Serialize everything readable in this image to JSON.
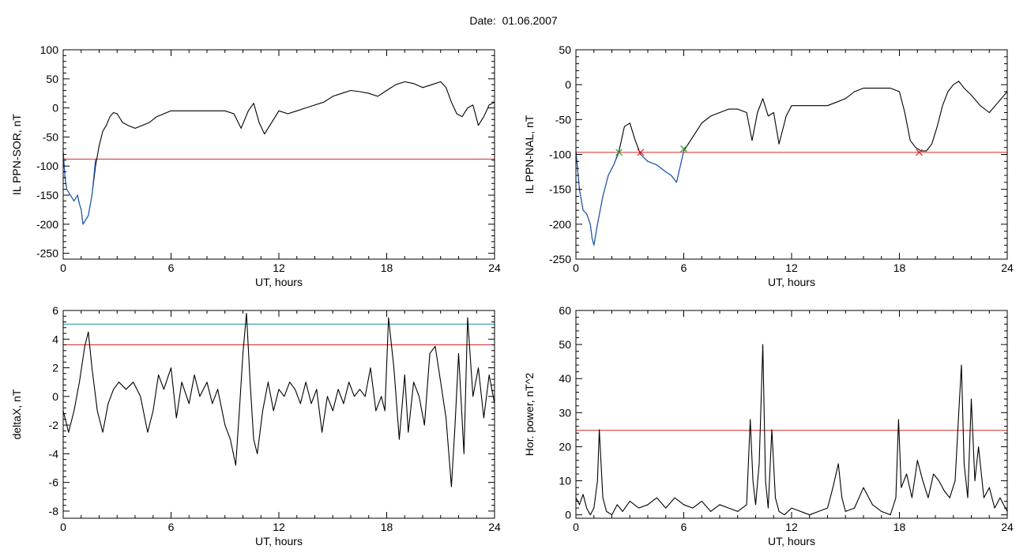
{
  "page": {
    "title": "Date:  01.06.2007"
  },
  "chart_data": [
    {
      "type": "line",
      "ylabel": "IL PPN-SOR, nT",
      "xlabel": "UT, hours",
      "xlim": [
        0,
        24
      ],
      "ylim": [
        -260,
        100
      ],
      "xticks": [
        0,
        6,
        12,
        18,
        24
      ],
      "yticks": [
        100,
        50,
        0,
        -50,
        -100,
        -150,
        -200,
        -250
      ],
      "threshold": -88,
      "series": [
        {
          "color": "#000000",
          "x": [
            0,
            0.1,
            0.2,
            0.4,
            0.6,
            0.8,
            0.9,
            1.0,
            1.1,
            1.2,
            1.4,
            1.6,
            1.8,
            2.0,
            2.2,
            2.4,
            2.6,
            2.8,
            3.0,
            3.3,
            3.6,
            4.0,
            4.4,
            4.8,
            5.2,
            5.6,
            6.0,
            6.5,
            7.0,
            7.5,
            8.0,
            8.5,
            9.0,
            9.5,
            9.9,
            10.3,
            10.6,
            10.9,
            11.2,
            11.5,
            12.0,
            12.5,
            13.0,
            13.5,
            14.0,
            14.5,
            15.0,
            15.5,
            16.0,
            16.5,
            17.0,
            17.5,
            18.0,
            18.5,
            19.0,
            19.5,
            20.0,
            20.5,
            21.0,
            21.3,
            21.6,
            21.9,
            22.2,
            22.5,
            22.8,
            23.1,
            23.4,
            23.7,
            24.0
          ],
          "y": [
            -75,
            -120,
            -140,
            -150,
            -160,
            -150,
            -165,
            -175,
            -200,
            -195,
            -185,
            -150,
            -100,
            -65,
            -40,
            -30,
            -15,
            -8,
            -10,
            -25,
            -30,
            -35,
            -30,
            -25,
            -15,
            -10,
            -5,
            -5,
            -5,
            -5,
            -5,
            -5,
            -5,
            -10,
            -35,
            -5,
            8,
            -25,
            -45,
            -30,
            -5,
            -10,
            -5,
            0,
            5,
            10,
            20,
            25,
            30,
            28,
            25,
            20,
            30,
            40,
            45,
            42,
            35,
            40,
            45,
            35,
            10,
            -10,
            -15,
            0,
            5,
            -30,
            -15,
            5,
            10
          ]
        },
        {
          "color": "#1f5fbf",
          "x": [
            0,
            0.1,
            0.2,
            0.4,
            0.6,
            0.8,
            0.9,
            1.0,
            1.1,
            1.2,
            1.4,
            1.6,
            1.8
          ],
          "y": [
            -75,
            -120,
            -140,
            -150,
            -160,
            -150,
            -165,
            -175,
            -200,
            -195,
            -185,
            -150,
            -88
          ]
        }
      ]
    },
    {
      "type": "line",
      "ylabel": "IL PPN-NAL, nT",
      "xlabel": "UT, hours",
      "xlim": [
        0,
        24
      ],
      "ylim": [
        -250,
        50
      ],
      "xticks": [
        0,
        6,
        12,
        18,
        24
      ],
      "yticks": [
        50,
        0,
        -50,
        -100,
        -150,
        -200,
        -250
      ],
      "threshold": -97,
      "series": [
        {
          "color": "#000000",
          "x": [
            0,
            0.2,
            0.4,
            0.6,
            0.8,
            0.9,
            1.0,
            1.2,
            1.5,
            1.8,
            2.1,
            2.4,
            2.7,
            3.0,
            3.3,
            3.6,
            4.0,
            4.5,
            5.0,
            5.3,
            5.6,
            6.0,
            6.5,
            7.0,
            7.5,
            8.0,
            8.5,
            9.0,
            9.5,
            9.8,
            10.1,
            10.4,
            10.7,
            11.0,
            11.3,
            11.7,
            12.0,
            12.5,
            13.0,
            13.5,
            14.0,
            14.5,
            15.0,
            15.5,
            16.0,
            16.5,
            17.0,
            17.5,
            18.0,
            18.3,
            18.6,
            18.9,
            19.2,
            19.5,
            19.8,
            20.1,
            20.4,
            20.7,
            21.0,
            21.3,
            21.6,
            22.0,
            22.5,
            23.0,
            23.5,
            24.0
          ],
          "y": [
            -95,
            -150,
            -180,
            -185,
            -200,
            -220,
            -230,
            -200,
            -160,
            -130,
            -115,
            -95,
            -60,
            -55,
            -80,
            -100,
            -110,
            -115,
            -125,
            -130,
            -140,
            -95,
            -75,
            -55,
            -45,
            -40,
            -35,
            -35,
            -40,
            -80,
            -40,
            -20,
            -45,
            -40,
            -85,
            -45,
            -30,
            -30,
            -30,
            -30,
            -30,
            -25,
            -20,
            -10,
            -5,
            -5,
            -5,
            -5,
            -10,
            -40,
            -80,
            -90,
            -95,
            -95,
            -85,
            -60,
            -30,
            -10,
            0,
            5,
            -5,
            -15,
            -30,
            -40,
            -25,
            -10
          ]
        },
        {
          "color": "#1f5fbf",
          "x": [
            0,
            0.2,
            0.4,
            0.6,
            0.8,
            0.9,
            1.0,
            1.2,
            1.5,
            1.8,
            2.1,
            2.4
          ],
          "y": [
            -95,
            -150,
            -180,
            -185,
            -200,
            -220,
            -230,
            -200,
            -160,
            -130,
            -115,
            -97
          ]
        },
        {
          "color": "#1f5fbf",
          "x": [
            3.6,
            4.0,
            4.5,
            5.0,
            5.3,
            5.6,
            6.0
          ],
          "y": [
            -100,
            -110,
            -115,
            -125,
            -130,
            -140,
            -95
          ]
        }
      ],
      "markers": [
        {
          "x": 2.4,
          "y": -97,
          "color": "#2ca02c"
        },
        {
          "x": 3.6,
          "y": -97,
          "color": "#d62728"
        },
        {
          "x": 6.0,
          "y": -92,
          "color": "#2ca02c"
        },
        {
          "x": 19.1,
          "y": -97,
          "color": "#d62728"
        }
      ]
    },
    {
      "type": "line",
      "ylabel": "deltaX, nT",
      "xlabel": "UT, hours",
      "xlim": [
        0,
        24
      ],
      "ylim": [
        -8.5,
        6
      ],
      "xticks": [
        0,
        6,
        12,
        18,
        24
      ],
      "yticks": [
        6,
        4,
        2,
        0,
        -2,
        -4,
        -6,
        -8
      ],
      "threshold": 3.6,
      "threshold2": 5.05,
      "series": [
        {
          "color": "#000000",
          "x": [
            0,
            0.3,
            0.6,
            0.9,
            1.2,
            1.4,
            1.6,
            1.9,
            2.2,
            2.5,
            2.8,
            3.1,
            3.5,
            3.9,
            4.3,
            4.7,
            5.0,
            5.3,
            5.6,
            6.0,
            6.3,
            6.6,
            7.0,
            7.3,
            7.6,
            8.0,
            8.3,
            8.6,
            9.0,
            9.3,
            9.6,
            9.8,
            10.0,
            10.2,
            10.4,
            10.6,
            10.8,
            11.1,
            11.4,
            11.7,
            12.0,
            12.3,
            12.6,
            12.9,
            13.2,
            13.5,
            13.8,
            14.1,
            14.4,
            14.7,
            15.0,
            15.3,
            15.6,
            15.9,
            16.2,
            16.5,
            16.8,
            17.1,
            17.4,
            17.7,
            17.9,
            18.1,
            18.4,
            18.7,
            19.0,
            19.2,
            19.5,
            19.8,
            20.1,
            20.4,
            20.7,
            21.0,
            21.3,
            21.6,
            21.8,
            22.0,
            22.3,
            22.5,
            22.8,
            23.1,
            23.4,
            23.7,
            24.0
          ],
          "y": [
            -1,
            -2.5,
            -1,
            1,
            3.5,
            4.5,
            2,
            -1,
            -2.5,
            -0.5,
            0.5,
            1,
            0.5,
            1,
            0,
            -2.5,
            -1,
            1.5,
            0.5,
            2,
            -1.5,
            1,
            -0.5,
            1.5,
            0,
            1,
            -0.5,
            0.5,
            -2,
            -3,
            -4.8,
            -1,
            3,
            5.8,
            1,
            -3,
            -4,
            -1,
            1,
            -1,
            0.5,
            0,
            1,
            0.5,
            -0.5,
            1,
            -0.5,
            0.5,
            -2.5,
            0,
            -1,
            0.5,
            -0.5,
            1,
            0,
            0.5,
            0,
            2,
            -1,
            0,
            -1,
            5.5,
            2,
            -3,
            1.5,
            -2.5,
            1,
            0,
            -2,
            3,
            3.5,
            1,
            -1.5,
            -6.3,
            -2,
            3,
            -4,
            5.5,
            0,
            2,
            -1.5,
            1.5,
            -0.5
          ]
        }
      ]
    },
    {
      "type": "line",
      "ylabel": "Hor. power, nT^2",
      "xlabel": "UT, hours",
      "xlim": [
        0,
        24
      ],
      "ylim": [
        -1,
        60
      ],
      "xticks": [
        0,
        6,
        12,
        18,
        24
      ],
      "yticks": [
        60,
        50,
        40,
        30,
        20,
        10,
        0
      ],
      "threshold": 24.8,
      "series": [
        {
          "color": "#000000",
          "x": [
            0,
            0.2,
            0.4,
            0.6,
            0.8,
            1.0,
            1.2,
            1.3,
            1.5,
            1.7,
            2.0,
            2.3,
            2.6,
            3.0,
            3.5,
            4.0,
            4.5,
            5.0,
            5.5,
            6.0,
            6.5,
            7.0,
            7.5,
            8.0,
            8.5,
            9.0,
            9.5,
            9.7,
            9.85,
            10.0,
            10.2,
            10.4,
            10.55,
            10.7,
            10.9,
            11.1,
            11.3,
            11.6,
            12.0,
            12.5,
            13.0,
            13.5,
            14.0,
            14.3,
            14.6,
            14.8,
            15.0,
            15.5,
            16.0,
            16.5,
            17.0,
            17.5,
            17.8,
            17.95,
            18.1,
            18.4,
            18.7,
            19.0,
            19.3,
            19.6,
            19.9,
            20.2,
            20.5,
            20.8,
            21.1,
            21.3,
            21.45,
            21.6,
            21.8,
            22.0,
            22.2,
            22.4,
            22.7,
            23.0,
            23.3,
            23.6,
            24.0
          ],
          "y": [
            5,
            3,
            6,
            2,
            0,
            2,
            10,
            25,
            5,
            1,
            0,
            3,
            1,
            4,
            2,
            3,
            5,
            2,
            5,
            3,
            2,
            4,
            1,
            3,
            2,
            1,
            3,
            28,
            10,
            3,
            15,
            50,
            10,
            2,
            25,
            5,
            1,
            0,
            2,
            1,
            0,
            1,
            2,
            8,
            15,
            5,
            1,
            2,
            8,
            3,
            1,
            0,
            5,
            28,
            8,
            12,
            5,
            16,
            10,
            5,
            12,
            10,
            7,
            5,
            10,
            30,
            44,
            15,
            5,
            34,
            10,
            20,
            5,
            8,
            2,
            5,
            1
          ]
        }
      ]
    }
  ]
}
